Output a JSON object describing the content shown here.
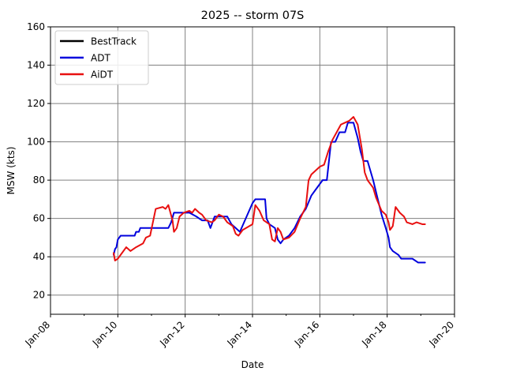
{
  "chart_data": {
    "type": "line",
    "title": "2025 -- storm 07S",
    "xlabel": "Date",
    "ylabel": "MSW (kts)",
    "ylim": [
      10,
      160
    ],
    "yticks": [
      20,
      40,
      60,
      80,
      100,
      120,
      140,
      160
    ],
    "xlim": [
      "2025-01-08",
      "2025-01-20"
    ],
    "xtick_labels": [
      "Jan-08",
      "Jan-10",
      "Jan-12",
      "Jan-14",
      "Jan-16",
      "Jan-18",
      "Jan-20"
    ],
    "grid": true,
    "legend_position": "top-left",
    "series": [
      {
        "name": "BestTrack",
        "color": "#000000",
        "points": []
      },
      {
        "name": "ADT",
        "color": "#0000dd",
        "points": [
          [
            "2025-01-09T21:00",
            41
          ],
          [
            "2025-01-09T22:00",
            44
          ],
          [
            "2025-01-09T23:00",
            45
          ],
          [
            "2025-01-10T00:00",
            49
          ],
          [
            "2025-01-10T02:00",
            51
          ],
          [
            "2025-01-10T04:00",
            51
          ],
          [
            "2025-01-10T12:00",
            51
          ],
          [
            "2025-01-10T13:00",
            53
          ],
          [
            "2025-01-10T15:00",
            53
          ],
          [
            "2025-01-10T16:00",
            55
          ],
          [
            "2025-01-11T12:00",
            55
          ],
          [
            "2025-01-11T14:00",
            58
          ],
          [
            "2025-01-11T16:00",
            63
          ],
          [
            "2025-01-12T03:00",
            63
          ],
          [
            "2025-01-12T08:00",
            61
          ],
          [
            "2025-01-12T12:00",
            59
          ],
          [
            "2025-01-12T16:00",
            59
          ],
          [
            "2025-01-12T18:00",
            55
          ],
          [
            "2025-01-12T21:00",
            61
          ],
          [
            "2025-01-13T06:00",
            61
          ],
          [
            "2025-01-13T09:00",
            57
          ],
          [
            "2025-01-13T12:00",
            55
          ],
          [
            "2025-01-13T15:00",
            53
          ],
          [
            "2025-01-14T00:00",
            68
          ],
          [
            "2025-01-14T02:00",
            70
          ],
          [
            "2025-01-14T09:00",
            70
          ],
          [
            "2025-01-14T10:00",
            60
          ],
          [
            "2025-01-14T12:00",
            57
          ],
          [
            "2025-01-14T16:00",
            55
          ],
          [
            "2025-01-14T18:00",
            49
          ],
          [
            "2025-01-14T20:00",
            47
          ],
          [
            "2025-01-14T22:00",
            49
          ],
          [
            "2025-01-15T02:00",
            51
          ],
          [
            "2025-01-15T06:00",
            55
          ],
          [
            "2025-01-15T10:00",
            61
          ],
          [
            "2025-01-15T14:00",
            65
          ],
          [
            "2025-01-15T18:00",
            72
          ],
          [
            "2025-01-15T21:00",
            75
          ],
          [
            "2025-01-16T00:00",
            78
          ],
          [
            "2025-01-16T02:00",
            80
          ],
          [
            "2025-01-16T05:00",
            80
          ],
          [
            "2025-01-16T08:00",
            100
          ],
          [
            "2025-01-16T11:00",
            100
          ],
          [
            "2025-01-16T14:00",
            105
          ],
          [
            "2025-01-16T18:00",
            105
          ],
          [
            "2025-01-16T20:00",
            110
          ],
          [
            "2025-01-17T00:00",
            110
          ],
          [
            "2025-01-17T03:00",
            102
          ],
          [
            "2025-01-17T05:00",
            95
          ],
          [
            "2025-01-17T07:00",
            90
          ],
          [
            "2025-01-17T10:00",
            90
          ],
          [
            "2025-01-17T14:00",
            80
          ],
          [
            "2025-01-17T18:00",
            68
          ],
          [
            "2025-01-17T20:00",
            62
          ],
          [
            "2025-01-17T23:00",
            55
          ],
          [
            "2025-01-18T01:00",
            50
          ],
          [
            "2025-01-18T02:00",
            45
          ],
          [
            "2025-01-18T04:00",
            43
          ],
          [
            "2025-01-18T08:00",
            41
          ],
          [
            "2025-01-18T10:00",
            39
          ],
          [
            "2025-01-18T18:00",
            39
          ],
          [
            "2025-01-18T22:00",
            37
          ],
          [
            "2025-01-19T03:00",
            37
          ]
        ]
      },
      {
        "name": "AiDT",
        "color": "#e81010",
        "points": [
          [
            "2025-01-09T21:00",
            42
          ],
          [
            "2025-01-09T22:00",
            38
          ],
          [
            "2025-01-10T00:00",
            39
          ],
          [
            "2025-01-10T06:00",
            45
          ],
          [
            "2025-01-10T09:00",
            43
          ],
          [
            "2025-01-10T13:00",
            45
          ],
          [
            "2025-01-10T18:00",
            47
          ],
          [
            "2025-01-10T20:00",
            50
          ],
          [
            "2025-01-10T23:00",
            51
          ],
          [
            "2025-01-11T03:00",
            65
          ],
          [
            "2025-01-11T08:00",
            66
          ],
          [
            "2025-01-11T10:00",
            65
          ],
          [
            "2025-01-11T12:00",
            67
          ],
          [
            "2025-01-11T15:00",
            59
          ],
          [
            "2025-01-11T16:00",
            53
          ],
          [
            "2025-01-11T18:00",
            55
          ],
          [
            "2025-01-11T20:00",
            61
          ],
          [
            "2025-01-11T23:00",
            63
          ],
          [
            "2025-01-12T03:00",
            64
          ],
          [
            "2025-01-12T05:00",
            63
          ],
          [
            "2025-01-12T07:00",
            65
          ],
          [
            "2025-01-12T10:00",
            63
          ],
          [
            "2025-01-12T12:00",
            62
          ],
          [
            "2025-01-12T15:00",
            59
          ],
          [
            "2025-01-12T19:00",
            58
          ],
          [
            "2025-01-12T21:00",
            59
          ],
          [
            "2025-01-13T00:00",
            62
          ],
          [
            "2025-01-13T03:00",
            61
          ],
          [
            "2025-01-13T06:00",
            58
          ],
          [
            "2025-01-13T10:00",
            56
          ],
          [
            "2025-01-13T12:00",
            52
          ],
          [
            "2025-01-13T14:00",
            51
          ],
          [
            "2025-01-13T17:00",
            54
          ],
          [
            "2025-01-14T00:00",
            57
          ],
          [
            "2025-01-14T02:00",
            67
          ],
          [
            "2025-01-14T05:00",
            64
          ],
          [
            "2025-01-14T08:00",
            59
          ],
          [
            "2025-01-14T12:00",
            57
          ],
          [
            "2025-01-14T14:00",
            49
          ],
          [
            "2025-01-14T16:00",
            48
          ],
          [
            "2025-01-14T18:00",
            55
          ],
          [
            "2025-01-14T20:00",
            53
          ],
          [
            "2025-01-14T22:00",
            49
          ],
          [
            "2025-01-15T02:00",
            50
          ],
          [
            "2025-01-15T06:00",
            53
          ],
          [
            "2025-01-15T10:00",
            60
          ],
          [
            "2025-01-15T14:00",
            66
          ],
          [
            "2025-01-15T16:00",
            80
          ],
          [
            "2025-01-15T18:00",
            83
          ],
          [
            "2025-01-15T21:00",
            85
          ],
          [
            "2025-01-16T00:00",
            87
          ],
          [
            "2025-01-16T03:00",
            88
          ],
          [
            "2025-01-16T06:00",
            95
          ],
          [
            "2025-01-16T09:00",
            101
          ],
          [
            "2025-01-16T12:00",
            105
          ],
          [
            "2025-01-16T15:00",
            109
          ],
          [
            "2025-01-16T18:00",
            110
          ],
          [
            "2025-01-16T21:00",
            111
          ],
          [
            "2025-01-17T00:00",
            113
          ],
          [
            "2025-01-17T03:00",
            109
          ],
          [
            "2025-01-17T06:00",
            96
          ],
          [
            "2025-01-17T08:00",
            84
          ],
          [
            "2025-01-17T10:00",
            80
          ],
          [
            "2025-01-17T14:00",
            76
          ],
          [
            "2025-01-17T16:00",
            71
          ],
          [
            "2025-01-17T20:00",
            64
          ],
          [
            "2025-01-17T23:00",
            62
          ],
          [
            "2025-01-18T01:00",
            58
          ],
          [
            "2025-01-18T02:00",
            54
          ],
          [
            "2025-01-18T04:00",
            56
          ],
          [
            "2025-01-18T06:00",
            66
          ],
          [
            "2025-01-18T09:00",
            63
          ],
          [
            "2025-01-18T12:00",
            61
          ],
          [
            "2025-01-18T14:00",
            58
          ],
          [
            "2025-01-18T18:00",
            57
          ],
          [
            "2025-01-18T21:00",
            58
          ],
          [
            "2025-01-19T01:00",
            57
          ],
          [
            "2025-01-19T03:00",
            57
          ]
        ]
      }
    ]
  }
}
